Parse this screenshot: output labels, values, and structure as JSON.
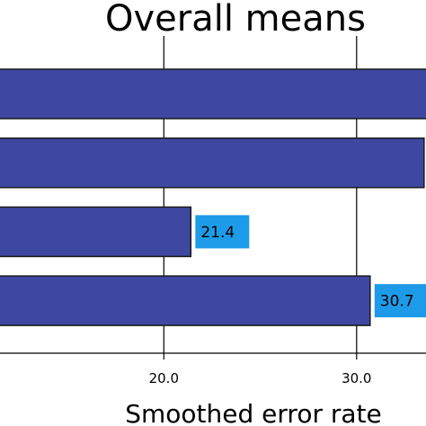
{
  "chart_data": {
    "type": "bar",
    "orientation": "horizontal",
    "title": "Overall means",
    "xlabel": "Smoothed error rate",
    "ylabel": "",
    "xlim": [
      11.5,
      33.6
    ],
    "xticks": [
      20.0,
      30.0
    ],
    "xtick_labels": [
      "20.0",
      "30.0"
    ],
    "grid": "vertical",
    "categories": [
      "",
      "",
      "",
      ""
    ],
    "values": [
      34.5,
      33.5,
      21.4,
      30.7
    ],
    "data_labels": [
      "",
      "",
      "21.4",
      "30.7"
    ],
    "colors": {
      "bar_fill": "#3F48A0",
      "bar_edge": "#1A1A1A",
      "label_bg": "#1E9BE8",
      "grid": "#000000"
    }
  }
}
